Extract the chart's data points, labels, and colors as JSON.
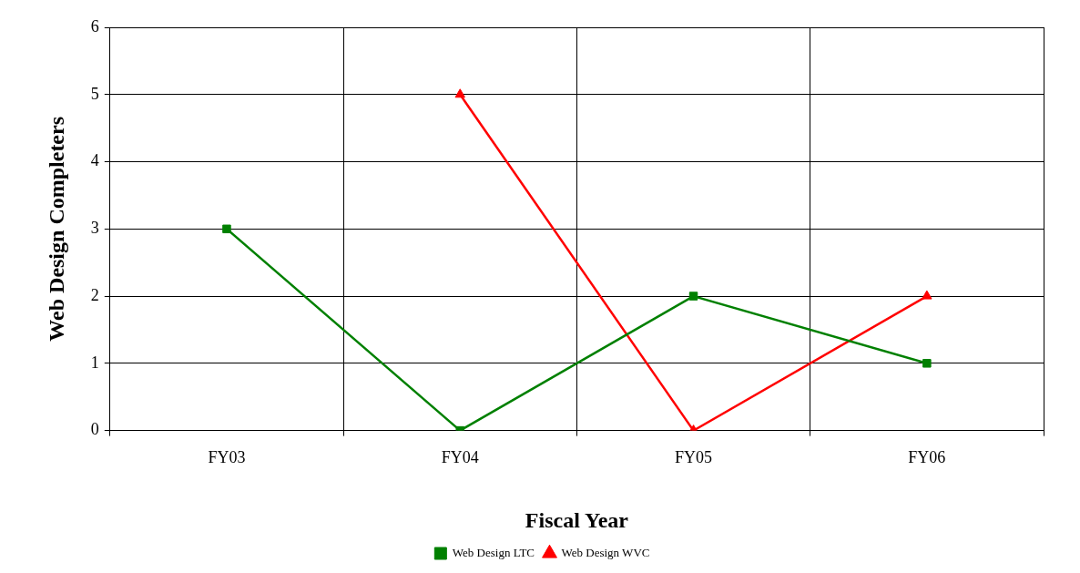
{
  "chart_data": {
    "type": "line",
    "xlabel": "Fiscal Year",
    "ylabel": "Web Design Completers",
    "categories": [
      "FY03",
      "FY04",
      "FY05",
      "FY06"
    ],
    "series": [
      {
        "name": "Web Design LTC",
        "color": "#008000",
        "marker": "square",
        "values": [
          3,
          0,
          2,
          1
        ]
      },
      {
        "name": "Web Design WVC",
        "color": "#ff0000",
        "marker": "triangle",
        "values": [
          null,
          5,
          0,
          2
        ]
      }
    ],
    "ylim": [
      0,
      6
    ],
    "yticks": [
      0,
      1,
      2,
      3,
      4,
      5,
      6
    ],
    "grid": true,
    "legend": "bottom"
  }
}
